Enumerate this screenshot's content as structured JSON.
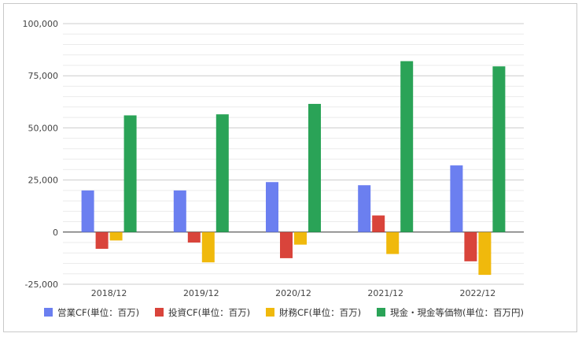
{
  "chart_data": {
    "type": "bar",
    "categories": [
      "2018/12",
      "2019/12",
      "2020/12",
      "2021/12",
      "2022/12"
    ],
    "series": [
      {
        "name": "営業CF(単位：百万)",
        "color": "#6b7ff0",
        "values": [
          20000,
          20000,
          24000,
          22500,
          32000
        ]
      },
      {
        "name": "投資CF(単位：百万)",
        "color": "#d9443b",
        "values": [
          -8000,
          -5000,
          -12500,
          8000,
          -14000
        ]
      },
      {
        "name": "財務CF(単位：百万)",
        "color": "#f0b90c",
        "values": [
          -4000,
          -14500,
          -6000,
          -10500,
          -20500
        ]
      },
      {
        "name": "現金・現金等価物(単位：百万円)",
        "color": "#2aa357",
        "values": [
          56000,
          56500,
          61500,
          82000,
          79500
        ]
      }
    ],
    "yticks": [
      {
        "value": 100000,
        "label": "100,000"
      },
      {
        "value": 75000,
        "label": "75,000"
      },
      {
        "value": 50000,
        "label": "50,000"
      },
      {
        "value": 25000,
        "label": "25,000"
      },
      {
        "value": 0,
        "label": "0"
      },
      {
        "value": -25000,
        "label": "-25,000"
      }
    ],
    "ylim": [
      -25000,
      100000
    ],
    "minor_step": 5000,
    "grid": true,
    "legend": "bottom",
    "title": "",
    "xlabel": "",
    "ylabel": ""
  }
}
